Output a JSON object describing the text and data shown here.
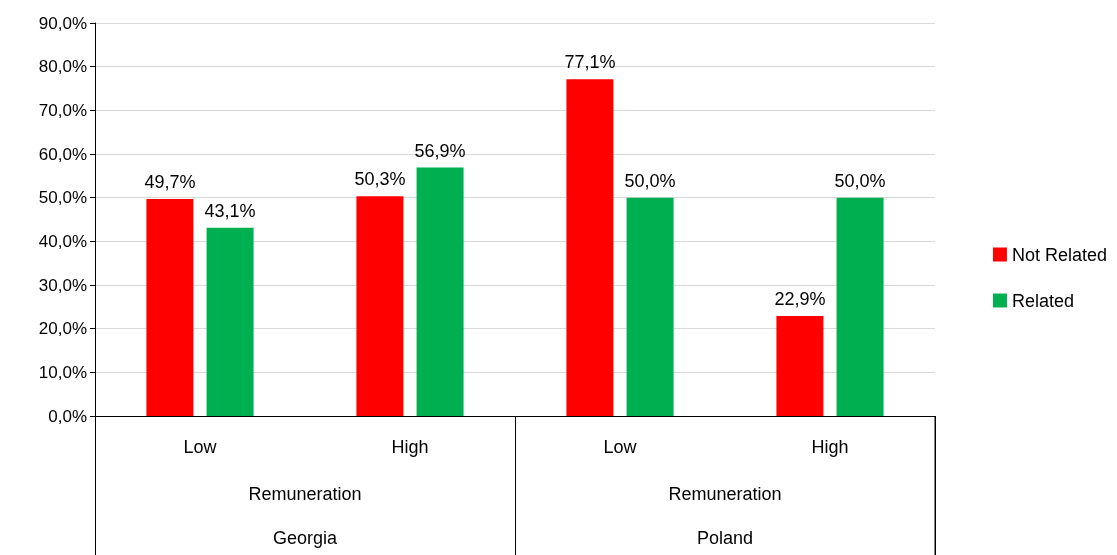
{
  "chart_data": {
    "type": "bar",
    "categories": [
      "Low",
      "High",
      "Low",
      "High"
    ],
    "series": [
      {
        "name": "Not Related",
        "color": "#ff0000",
        "values": [
          49.7,
          50.3,
          77.1,
          22.9
        ],
        "value_labels": [
          "49,7%",
          "50,3%",
          "77,1%",
          "22,9%"
        ]
      },
      {
        "name": "Related",
        "color": "#00b050",
        "values": [
          43.1,
          56.9,
          50.0,
          50.0
        ],
        "value_labels": [
          "43,1%",
          "56,9%",
          "50,0%",
          "50,0%"
        ]
      }
    ],
    "ylim": [
      0,
      90
    ],
    "yticks": [
      {
        "value": 0,
        "label": "0,0%"
      },
      {
        "value": 10,
        "label": "10,0%"
      },
      {
        "value": 20,
        "label": "20,0%"
      },
      {
        "value": 30,
        "label": "30,0%"
      },
      {
        "value": 40,
        "label": "40,0%"
      },
      {
        "value": 50,
        "label": "50,0%"
      },
      {
        "value": 60,
        "label": "60,0%"
      },
      {
        "value": 70,
        "label": "70,0%"
      },
      {
        "value": 80,
        "label": "80,0%"
      },
      {
        "value": 90,
        "label": "90,0%"
      }
    ],
    "annotations": [
      "Remuneration",
      "Remuneration",
      "Georgia",
      "Poland"
    ],
    "grid": "y",
    "legend": "right"
  }
}
